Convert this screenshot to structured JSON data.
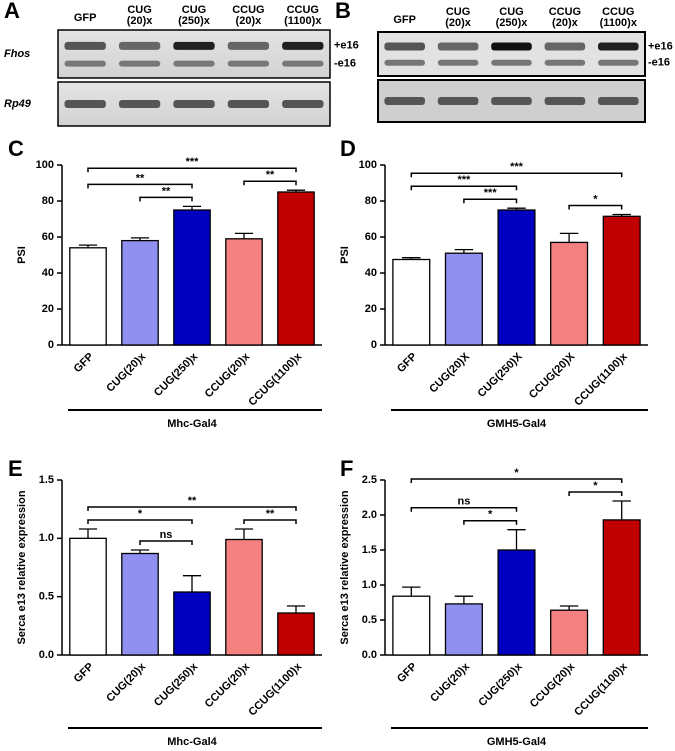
{
  "gels": [
    {
      "panel": "A",
      "lanes": [
        [
          "GFP"
        ],
        [
          "CUG",
          "(20)x"
        ],
        [
          "CUG",
          "(250)x"
        ],
        [
          "CCUG",
          "(20)x"
        ],
        [
          "CCUG",
          "(1100)x"
        ]
      ],
      "rows": [
        "Fhos",
        "Rp49"
      ],
      "bands": [
        "+e16",
        "-e16"
      ]
    },
    {
      "panel": "B",
      "lanes": [
        [
          "GFP"
        ],
        [
          "CUG",
          "(20)x"
        ],
        [
          "CUG",
          "(250)x"
        ],
        [
          "CCUG",
          "(20)x"
        ],
        [
          "CCUG",
          "(1100)x"
        ]
      ],
      "bands": [
        "+e16",
        "-e16"
      ]
    }
  ],
  "chart_data": [
    {
      "type": "bar",
      "panel": "C",
      "ylabel": "PSI",
      "group_label": "Mhc-Gal4",
      "categories": [
        "GFP",
        "CUG(20)x",
        "CUG(250)x",
        "CCUG(20)x",
        "CCUG(1100)x"
      ],
      "values": [
        54,
        58,
        75,
        59,
        85
      ],
      "errors": [
        1.5,
        1.5,
        2,
        3,
        1
      ],
      "colors": [
        "#ffffff",
        "#9090f0",
        "#0000c0",
        "#f48080",
        "#c00000"
      ],
      "ylim": [
        0,
        100
      ],
      "yticks": [
        0,
        20,
        40,
        60,
        80,
        100
      ],
      "annotations": [
        {
          "text": "***",
          "from": 0,
          "to": 4
        },
        {
          "text": "**",
          "from": 0,
          "to": 2
        },
        {
          "text": "**",
          "from": 1,
          "to": 2
        },
        {
          "text": "**",
          "from": 3,
          "to": 4
        }
      ]
    },
    {
      "type": "bar",
      "panel": "D",
      "ylabel": "PSI",
      "group_label": "GMH5-Gal4",
      "categories": [
        "GFP",
        "CUG(20)X",
        "CUG(250)X",
        "CCUG(20)X",
        "CCUG(1100)x"
      ],
      "values": [
        47.5,
        51,
        75,
        57,
        71.5
      ],
      "errors": [
        1,
        2,
        1,
        5,
        1
      ],
      "colors": [
        "#ffffff",
        "#9090f0",
        "#0000c0",
        "#f48080",
        "#c00000"
      ],
      "ylim": [
        0,
        100
      ],
      "yticks": [
        0,
        20,
        40,
        60,
        80,
        100
      ],
      "annotations": [
        {
          "text": "***",
          "from": 0,
          "to": 4
        },
        {
          "text": "***",
          "from": 0,
          "to": 2
        },
        {
          "text": "***",
          "from": 1,
          "to": 2
        },
        {
          "text": "*",
          "from": 3,
          "to": 4
        }
      ]
    },
    {
      "type": "bar",
      "panel": "E",
      "ylabel": "Serca e13 relative expression",
      "group_label": "Mhc-Gal4",
      "categories": [
        "GFP",
        "CUG(20)x",
        "CUG(250)x",
        "CCUG(20)x",
        "CCUG(1100)x"
      ],
      "values": [
        1.0,
        0.87,
        0.54,
        0.99,
        0.36
      ],
      "errors": [
        0.08,
        0.03,
        0.14,
        0.09,
        0.06
      ],
      "colors": [
        "#ffffff",
        "#9090f0",
        "#0000c0",
        "#f48080",
        "#c00000"
      ],
      "ylim": [
        0,
        1.5
      ],
      "yticks": [
        {
          "value": 0,
          "label": "0.0"
        },
        0.5,
        {
          "value": 1,
          "label": "1.0"
        },
        1.5
      ],
      "annotations": [
        {
          "text": "**",
          "from": 0,
          "to": 4
        },
        {
          "text": "*",
          "from": 0,
          "to": 2
        },
        {
          "text": "ns",
          "from": 1,
          "to": 2
        },
        {
          "text": "**",
          "from": 3,
          "to": 4
        }
      ]
    },
    {
      "type": "bar",
      "panel": "F",
      "ylabel": "Serca e13 relative expression",
      "group_label": "GMH5-Gal4",
      "categories": [
        "GFP",
        "CUG(20)x",
        "CUG(250)x",
        "CCUG(20)x",
        "CCUG(1100)x"
      ],
      "values": [
        0.84,
        0.73,
        1.5,
        0.64,
        1.93
      ],
      "errors": [
        0.13,
        0.11,
        0.29,
        0.06,
        0.27
      ],
      "colors": [
        "#ffffff",
        "#9090f0",
        "#0000c0",
        "#f48080",
        "#c00000"
      ],
      "ylim": [
        0,
        2.5
      ],
      "yticks": [
        {
          "value": 0,
          "label": "0.0"
        },
        0.5,
        {
          "value": 1,
          "label": "1.0"
        },
        1.5,
        {
          "value": 2,
          "label": "2.0"
        },
        2.5
      ],
      "annotations": [
        {
          "text": "*",
          "from": 0,
          "to": 4
        },
        {
          "text": "ns",
          "from": 0,
          "to": 2
        },
        {
          "text": "*",
          "from": 1,
          "to": 2
        },
        {
          "text": "*",
          "from": 3,
          "to": 4
        }
      ]
    }
  ]
}
